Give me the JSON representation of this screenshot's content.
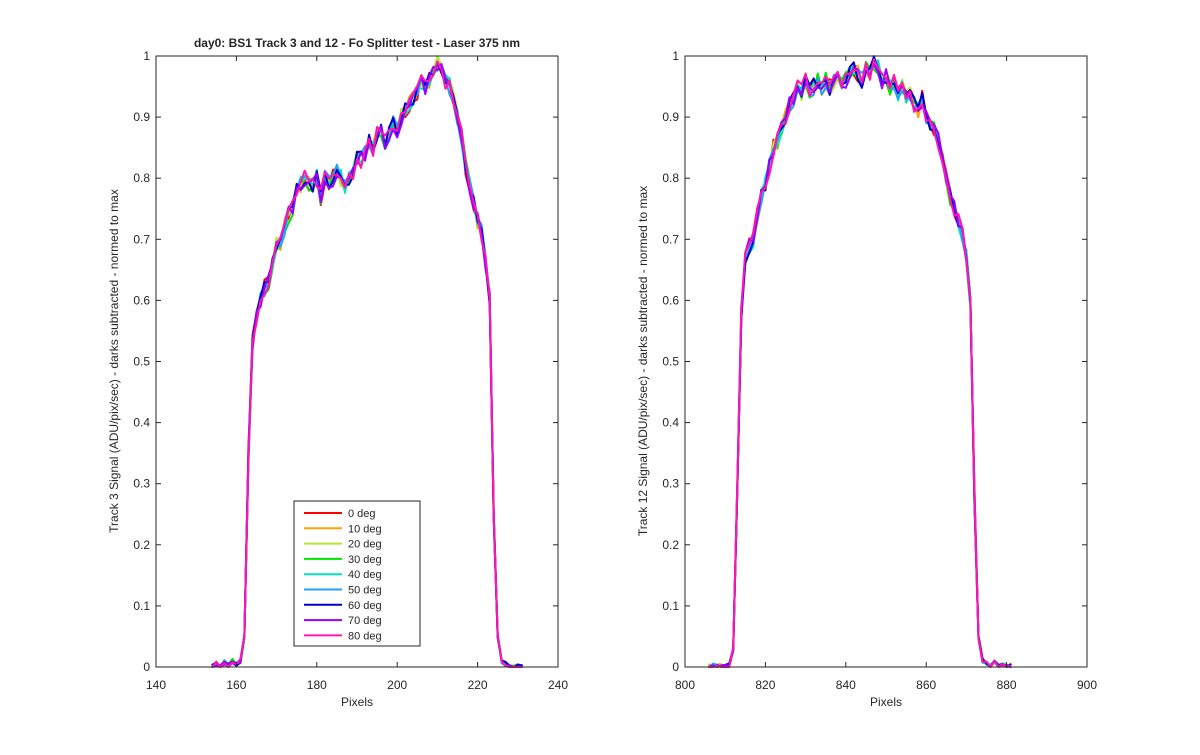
{
  "chart_data": [
    {
      "type": "line",
      "title": "day0: BS1  Track 3 and 12 - Fo Splitter test - Laser 375 nm",
      "xlabel": "Pixels",
      "ylabel": "Track 3 Signal (ADU/pix/sec) - darks subtracted - normed to max",
      "xlim": [
        140,
        240
      ],
      "ylim": [
        0,
        1
      ],
      "xticks": [
        140,
        160,
        180,
        200,
        220,
        240
      ],
      "yticks": [
        0,
        0.1,
        0.2,
        0.3,
        0.4,
        0.5,
        0.6,
        0.7,
        0.8,
        0.9,
        1
      ],
      "grid": false,
      "legend_position": "lower-center",
      "legend": [
        "0 deg",
        "10 deg",
        "20 deg",
        "30 deg",
        "40 deg",
        "50 deg",
        "60 deg",
        "70 deg",
        "80 deg"
      ],
      "profile": {
        "x": [
          154,
          155,
          156,
          157,
          158,
          159,
          160,
          161,
          162,
          163,
          164,
          165,
          166,
          167,
          168,
          169,
          170,
          171,
          172,
          173,
          174,
          175,
          176,
          177,
          178,
          179,
          180,
          181,
          182,
          183,
          184,
          185,
          186,
          187,
          188,
          189,
          190,
          191,
          192,
          193,
          194,
          195,
          196,
          197,
          198,
          199,
          200,
          201,
          202,
          203,
          204,
          205,
          206,
          207,
          208,
          209,
          210,
          211,
          212,
          213,
          214,
          215,
          216,
          217,
          218,
          219,
          220,
          221,
          222,
          223,
          224,
          225,
          226,
          227,
          228,
          229,
          230,
          231
        ],
        "y": [
          0.0,
          0.005,
          0.0,
          0.008,
          0.003,
          0.01,
          0.004,
          0.01,
          0.05,
          0.35,
          0.53,
          0.57,
          0.6,
          0.62,
          0.63,
          0.66,
          0.69,
          0.69,
          0.72,
          0.74,
          0.75,
          0.78,
          0.79,
          0.8,
          0.79,
          0.79,
          0.8,
          0.77,
          0.8,
          0.79,
          0.8,
          0.81,
          0.8,
          0.79,
          0.8,
          0.81,
          0.83,
          0.83,
          0.84,
          0.86,
          0.85,
          0.87,
          0.88,
          0.86,
          0.87,
          0.89,
          0.88,
          0.9,
          0.91,
          0.92,
          0.93,
          0.94,
          0.96,
          0.95,
          0.96,
          0.97,
          0.99,
          0.98,
          0.96,
          0.95,
          0.93,
          0.9,
          0.87,
          0.82,
          0.79,
          0.76,
          0.73,
          0.71,
          0.66,
          0.6,
          0.25,
          0.05,
          0.01,
          0.005,
          0.0,
          0.0,
          0.003,
          0.0
        ]
      },
      "series": [
        {
          "name": "0 deg",
          "color": "#ff0000"
        },
        {
          "name": "10 deg",
          "color": "#ffa500"
        },
        {
          "name": "20 deg",
          "color": "#b4e632"
        },
        {
          "name": "30 deg",
          "color": "#00e600"
        },
        {
          "name": "40 deg",
          "color": "#00e6b4"
        },
        {
          "name": "50 deg",
          "color": "#28a0ff"
        },
        {
          "name": "60 deg",
          "color": "#0000cd"
        },
        {
          "name": "70 deg",
          "color": "#9600ff"
        },
        {
          "name": "80 deg",
          "color": "#ff14b4"
        }
      ]
    },
    {
      "type": "line",
      "title": "",
      "xlabel": "Pixels",
      "ylabel": "Track 12 Signal (ADU/pix/sec) - darks subtracted - normed to max",
      "xlim": [
        800,
        900
      ],
      "ylim": [
        0,
        1
      ],
      "xticks": [
        800,
        820,
        840,
        860,
        880,
        900
      ],
      "yticks": [
        0,
        0.1,
        0.2,
        0.3,
        0.4,
        0.5,
        0.6,
        0.7,
        0.8,
        0.9,
        1
      ],
      "grid": false,
      "profile": {
        "x": [
          806,
          807,
          808,
          809,
          810,
          811,
          812,
          813,
          814,
          815,
          816,
          817,
          818,
          819,
          820,
          821,
          822,
          823,
          824,
          825,
          826,
          827,
          828,
          829,
          830,
          831,
          832,
          833,
          834,
          835,
          836,
          837,
          838,
          839,
          840,
          841,
          842,
          843,
          844,
          845,
          846,
          847,
          848,
          849,
          850,
          851,
          852,
          853,
          854,
          855,
          856,
          857,
          858,
          859,
          860,
          861,
          862,
          863,
          864,
          865,
          866,
          867,
          868,
          869,
          870,
          871,
          872,
          873,
          874,
          875,
          876,
          877,
          878,
          879,
          880,
          881
        ],
        "y": [
          0.0,
          0.002,
          0.0,
          0.001,
          0.0,
          0.002,
          0.03,
          0.3,
          0.58,
          0.67,
          0.69,
          0.7,
          0.74,
          0.77,
          0.79,
          0.82,
          0.85,
          0.86,
          0.88,
          0.9,
          0.92,
          0.93,
          0.95,
          0.94,
          0.96,
          0.94,
          0.95,
          0.96,
          0.95,
          0.96,
          0.95,
          0.96,
          0.97,
          0.95,
          0.96,
          0.97,
          0.98,
          0.97,
          0.96,
          0.98,
          0.97,
          0.99,
          0.98,
          0.96,
          0.97,
          0.95,
          0.96,
          0.94,
          0.95,
          0.93,
          0.94,
          0.92,
          0.91,
          0.93,
          0.9,
          0.89,
          0.88,
          0.86,
          0.83,
          0.8,
          0.77,
          0.75,
          0.73,
          0.71,
          0.67,
          0.6,
          0.28,
          0.05,
          0.01,
          0.005,
          0.0,
          0.008,
          0.0,
          0.003,
          0.0,
          0.002
        ]
      },
      "series": [
        {
          "name": "0 deg",
          "color": "#ff0000"
        },
        {
          "name": "10 deg",
          "color": "#ffa500"
        },
        {
          "name": "20 deg",
          "color": "#b4e632"
        },
        {
          "name": "30 deg",
          "color": "#00e600"
        },
        {
          "name": "40 deg",
          "color": "#00e6b4"
        },
        {
          "name": "50 deg",
          "color": "#28a0ff"
        },
        {
          "name": "60 deg",
          "color": "#0000cd"
        },
        {
          "name": "70 deg",
          "color": "#9600ff"
        },
        {
          "name": "80 deg",
          "color": "#ff14b4"
        }
      ]
    }
  ]
}
